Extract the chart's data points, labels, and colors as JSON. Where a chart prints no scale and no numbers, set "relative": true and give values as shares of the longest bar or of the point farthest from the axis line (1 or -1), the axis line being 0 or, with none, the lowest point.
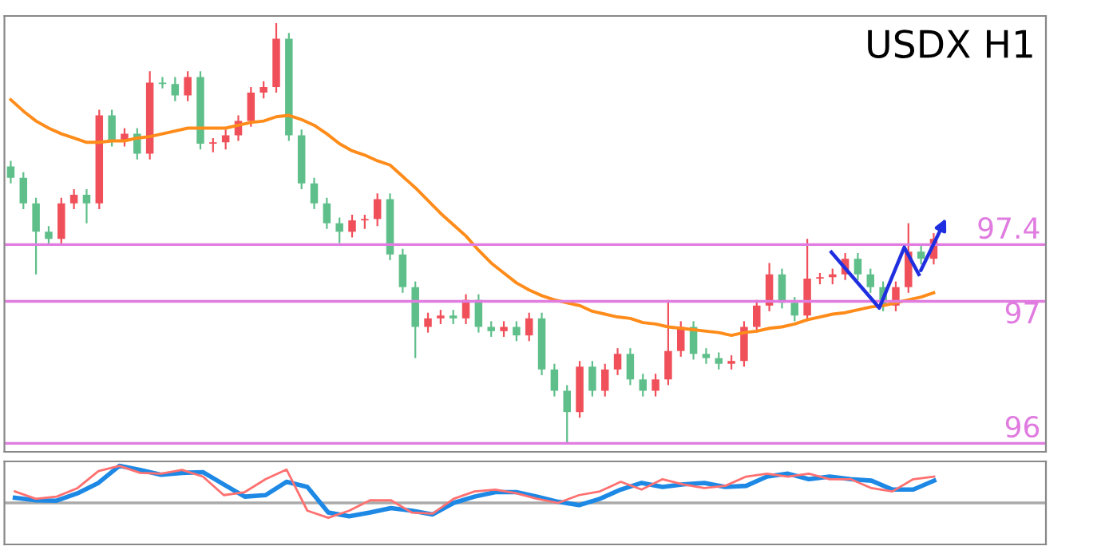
{
  "chart_data": [
    {
      "type": "candlestick",
      "title": "USDX H1",
      "ylim": [
        95.94,
        99.01
      ],
      "categories": [
        null,
        null,
        null,
        null,
        null,
        null,
        null,
        null,
        null,
        null,
        null,
        null,
        null,
        null,
        null,
        null,
        null,
        null,
        null,
        null,
        null,
        null,
        null,
        null,
        null,
        null,
        null,
        null,
        null,
        null,
        null,
        null,
        null,
        null,
        null,
        null,
        null,
        null,
        null,
        null,
        null,
        null,
        null,
        null,
        null,
        null,
        null,
        null,
        null,
        null,
        null,
        null,
        null,
        null,
        null,
        null,
        null,
        null,
        null,
        null,
        null,
        null,
        null,
        null,
        null,
        null,
        null,
        null,
        null,
        null,
        null,
        null,
        null,
        null
      ],
      "ohlc": [
        [
          97.95,
          97.99,
          97.83,
          97.87
        ],
        [
          97.87,
          97.91,
          97.65,
          97.69
        ],
        [
          97.69,
          97.73,
          97.19,
          97.49
        ],
        [
          97.49,
          97.53,
          97.4,
          97.44
        ],
        [
          97.44,
          97.73,
          97.4,
          97.69
        ],
        [
          97.69,
          97.79,
          97.65,
          97.75
        ],
        [
          97.75,
          97.79,
          97.55,
          97.69
        ],
        [
          97.69,
          98.35,
          97.65,
          98.31
        ],
        [
          98.31,
          98.35,
          98.09,
          98.13
        ],
        [
          98.13,
          98.22,
          98.09,
          98.18
        ],
        [
          98.18,
          98.22,
          98.0,
          98.04
        ],
        [
          98.04,
          98.62,
          98.0,
          98.54
        ],
        [
          98.54,
          98.58,
          98.5,
          98.53
        ],
        [
          98.53,
          98.58,
          98.41,
          98.45
        ],
        [
          98.45,
          98.62,
          98.41,
          98.58
        ],
        [
          98.58,
          98.62,
          98.07,
          98.11
        ],
        [
          98.11,
          98.15,
          98.05,
          98.12
        ],
        [
          98.12,
          98.21,
          98.07,
          98.17
        ],
        [
          98.17,
          98.31,
          98.13,
          98.27
        ],
        [
          98.27,
          98.51,
          98.23,
          98.47
        ],
        [
          98.47,
          98.55,
          98.43,
          98.51
        ],
        [
          98.51,
          98.96,
          98.47,
          98.85
        ],
        [
          98.85,
          98.89,
          98.13,
          98.17
        ],
        [
          98.17,
          98.21,
          97.79,
          97.83
        ],
        [
          97.83,
          97.87,
          97.65,
          97.69
        ],
        [
          97.69,
          97.73,
          97.51,
          97.55
        ],
        [
          97.55,
          97.59,
          97.41,
          97.49
        ],
        [
          97.49,
          97.61,
          97.45,
          97.57
        ],
        [
          97.57,
          97.61,
          97.51,
          97.58
        ],
        [
          97.58,
          97.76,
          97.53,
          97.72
        ],
        [
          97.72,
          97.76,
          97.29,
          97.33
        ],
        [
          97.33,
          97.37,
          97.06,
          97.1
        ],
        [
          97.1,
          97.14,
          96.6,
          96.82
        ],
        [
          96.82,
          96.92,
          96.78,
          96.88
        ],
        [
          96.88,
          96.94,
          96.84,
          96.9
        ],
        [
          96.9,
          96.94,
          96.84,
          96.88
        ],
        [
          96.88,
          97.05,
          96.84,
          97.01
        ],
        [
          97.01,
          97.05,
          96.78,
          96.82
        ],
        [
          96.82,
          96.86,
          96.75,
          96.79
        ],
        [
          96.79,
          96.86,
          96.75,
          96.82
        ],
        [
          96.82,
          96.86,
          96.72,
          96.76
        ],
        [
          96.76,
          96.92,
          96.72,
          96.88
        ],
        [
          96.88,
          96.92,
          96.48,
          96.52
        ],
        [
          96.52,
          96.56,
          96.33,
          96.37
        ],
        [
          96.37,
          96.41,
          96.0,
          96.22
        ],
        [
          96.22,
          96.58,
          96.18,
          96.54
        ],
        [
          96.54,
          96.58,
          96.33,
          96.37
        ],
        [
          96.37,
          96.56,
          96.33,
          96.52
        ],
        [
          96.52,
          96.67,
          96.48,
          96.63
        ],
        [
          96.63,
          96.67,
          96.41,
          96.45
        ],
        [
          96.45,
          96.49,
          96.33,
          96.37
        ],
        [
          96.37,
          96.49,
          96.33,
          96.45
        ],
        [
          96.45,
          97.01,
          96.41,
          96.65
        ],
        [
          96.65,
          96.86,
          96.61,
          96.82
        ],
        [
          96.82,
          96.86,
          96.59,
          96.63
        ],
        [
          96.63,
          96.67,
          96.56,
          96.6
        ],
        [
          96.6,
          96.64,
          96.52,
          96.56
        ],
        [
          96.56,
          96.62,
          96.52,
          96.58
        ],
        [
          96.58,
          96.86,
          96.54,
          96.82
        ],
        [
          96.82,
          97.01,
          96.78,
          96.97
        ],
        [
          96.97,
          97.27,
          96.93,
          97.19
        ],
        [
          97.19,
          97.23,
          96.95,
          96.99
        ],
        [
          96.99,
          97.03,
          96.86,
          96.9
        ],
        [
          96.9,
          97.44,
          96.86,
          97.16
        ],
        [
          97.16,
          97.2,
          97.12,
          97.17
        ],
        [
          97.17,
          97.23,
          97.12,
          97.19
        ],
        [
          97.19,
          97.34,
          97.15,
          97.3
        ],
        [
          97.3,
          97.34,
          97.15,
          97.19
        ],
        [
          97.19,
          97.23,
          97.06,
          97.1
        ],
        [
          97.1,
          97.14,
          96.93,
          96.97
        ],
        [
          96.97,
          97.14,
          96.93,
          97.1
        ],
        [
          97.1,
          97.55,
          97.06,
          97.35
        ],
        [
          97.35,
          97.39,
          97.26,
          97.3
        ],
        [
          97.3,
          97.48,
          97.26,
          97.44
        ]
      ],
      "colors": [
        "#5fbf8a",
        "#5fbf8a",
        "#5fbf8a",
        "#5fbf8a",
        "#f0505a",
        "#f0505a",
        "#5fbf8a",
        "#f0505a",
        "#5fbf8a",
        "#f0505a",
        "#5fbf8a",
        "#f0505a",
        "#5fbf8a",
        "#5fbf8a",
        "#f0505a",
        "#5fbf8a",
        "#f0505a",
        "#f0505a",
        "#f0505a",
        "#f0505a",
        "#f0505a",
        "#f0505a",
        "#5fbf8a",
        "#5fbf8a",
        "#5fbf8a",
        "#5fbf8a",
        "#5fbf8a",
        "#f0505a",
        "#f0505a",
        "#f0505a",
        "#5fbf8a",
        "#5fbf8a",
        "#5fbf8a",
        "#f0505a",
        "#f0505a",
        "#5fbf8a",
        "#f0505a",
        "#5fbf8a",
        "#5fbf8a",
        "#f0505a",
        "#5fbf8a",
        "#f0505a",
        "#5fbf8a",
        "#5fbf8a",
        "#5fbf8a",
        "#f0505a",
        "#5fbf8a",
        "#f0505a",
        "#f0505a",
        "#5fbf8a",
        "#5fbf8a",
        "#f0505a",
        "#f0505a",
        "#f0505a",
        "#5fbf8a",
        "#5fbf8a",
        "#5fbf8a",
        "#f0505a",
        "#f0505a",
        "#f0505a",
        "#f0505a",
        "#5fbf8a",
        "#5fbf8a",
        "#f0505a",
        "#f0505a",
        "#f0505a",
        "#f0505a",
        "#5fbf8a",
        "#5fbf8a",
        "#5fbf8a",
        "#f0505a",
        "#f0505a",
        "#5fbf8a",
        "#f0505a"
      ],
      "series": [
        {
          "type": "line",
          "color": "#ff8c1a",
          "values": [
            98.42,
            98.34,
            98.27,
            98.22,
            98.18,
            98.15,
            98.12,
            98.12,
            98.13,
            98.13,
            98.15,
            98.16,
            98.18,
            98.2,
            98.22,
            98.22,
            98.22,
            98.22,
            98.24,
            98.26,
            98.27,
            98.3,
            98.31,
            98.28,
            98.24,
            98.18,
            98.11,
            98.06,
            98.03,
            97.99,
            97.96,
            97.88,
            97.8,
            97.71,
            97.62,
            97.54,
            97.46,
            97.36,
            97.27,
            97.2,
            97.13,
            97.08,
            97.04,
            97.01,
            96.99,
            96.97,
            96.93,
            96.91,
            96.89,
            96.88,
            96.85,
            96.84,
            96.82,
            96.81,
            96.8,
            96.79,
            96.78,
            96.76,
            96.78,
            96.79,
            96.81,
            96.82,
            96.84,
            96.87,
            96.89,
            96.91,
            96.92,
            96.94,
            96.96,
            96.97,
            96.99,
            97.01,
            97.03,
            97.06
          ]
        }
      ],
      "ref_lines": [
        {
          "axis": "y",
          "value": 97.4,
          "label": "97.4",
          "color": "#e07be0"
        },
        {
          "axis": "y",
          "value": 97,
          "label": "97",
          "color": "#e07be0"
        },
        {
          "axis": "y",
          "value": 96,
          "label": "96",
          "color": "#e07be0"
        }
      ]
    },
    {
      "type": "line",
      "relative": true,
      "categories": [
        null,
        null,
        null,
        null,
        null,
        null,
        null,
        null,
        null,
        null,
        null,
        null,
        null,
        null,
        null,
        null,
        null,
        null,
        null,
        null,
        null,
        null,
        null,
        null,
        null,
        null,
        null,
        null,
        null,
        null,
        null,
        null,
        null,
        null,
        null,
        null,
        null,
        null,
        null,
        null,
        null,
        null,
        null,
        null,
        null
      ],
      "series": [
        {
          "color": "#ff7070",
          "values": [
            0.31,
            0.11,
            0.17,
            0.4,
            0.86,
            1.0,
            0.81,
            0.79,
            0.89,
            0.71,
            0.21,
            0.29,
            0.64,
            0.9,
            -0.21,
            -0.4,
            -0.21,
            0.07,
            0.07,
            -0.26,
            -0.29,
            0.11,
            0.31,
            0.36,
            0.26,
            0.11,
            0,
            0.21,
            0.31,
            0.57,
            0.36,
            0.64,
            0.5,
            0.4,
            0.46,
            0.71,
            0.79,
            0.71,
            0.79,
            0.64,
            0.64,
            0.4,
            0.31,
            0.64,
            0.71
          ]
        },
        {
          "color": "#1e88e5",
          "values": [
            0.14,
            0.07,
            0.06,
            0.26,
            0.54,
            1.0,
            0.89,
            0.76,
            0.81,
            0.83,
            0.5,
            0.17,
            0.21,
            0.57,
            0.43,
            -0.26,
            -0.36,
            -0.26,
            -0.14,
            -0.21,
            -0.31,
            0,
            0.17,
            0.29,
            0.29,
            0.17,
            0.03,
            -0.06,
            0.11,
            0.36,
            0.54,
            0.43,
            0.5,
            0.54,
            0.43,
            0.46,
            0.71,
            0.79,
            0.64,
            0.71,
            0.64,
            0.6,
            0.36,
            0.36,
            0.6
          ]
        }
      ]
    }
  ]
}
